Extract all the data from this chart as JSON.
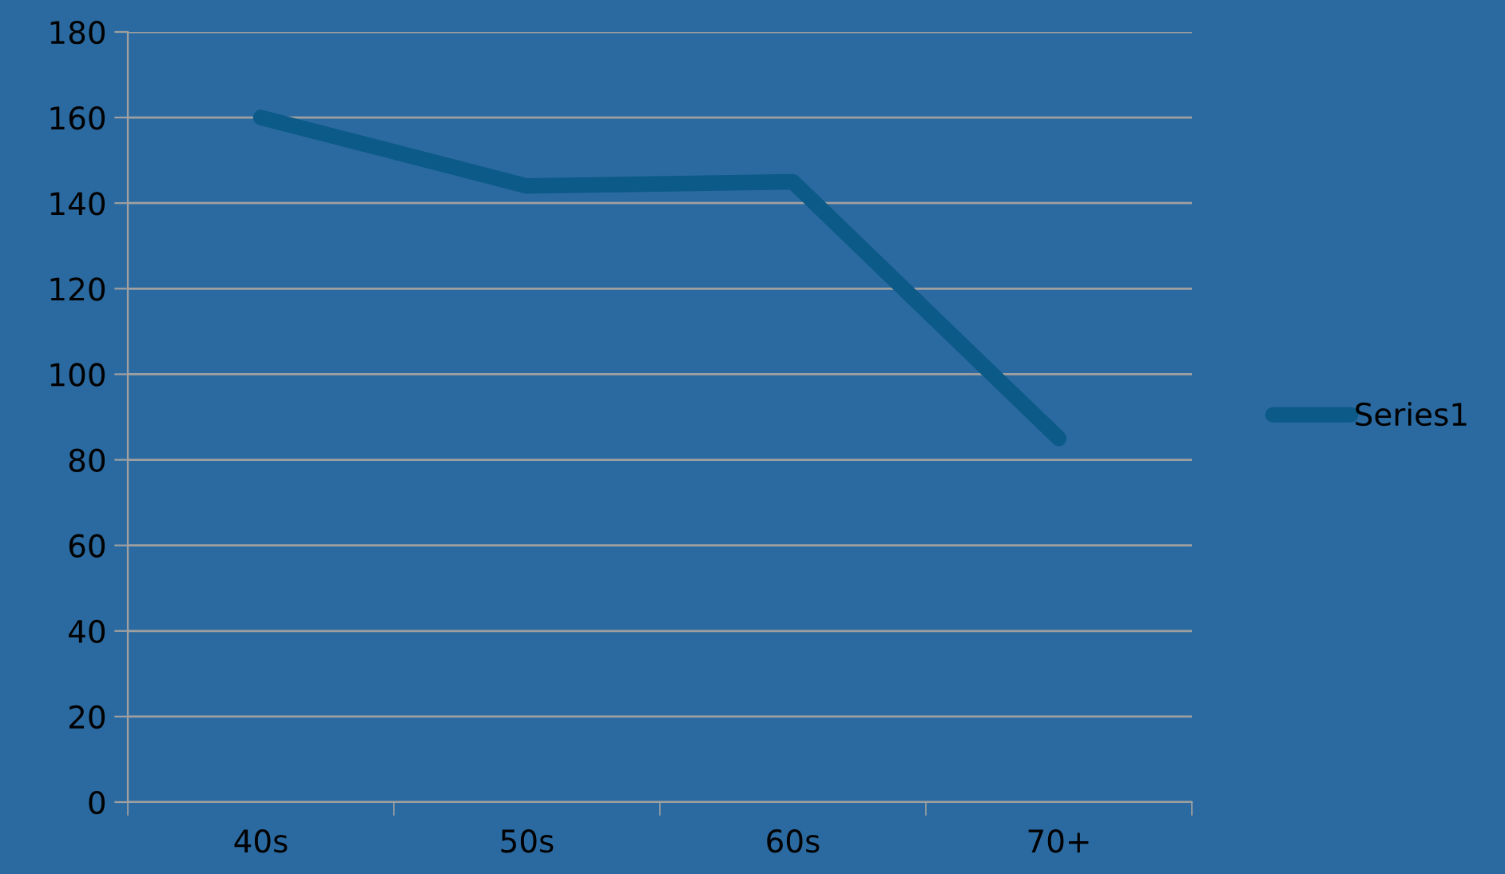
{
  "chart_data": {
    "type": "line",
    "categories": [
      "40s",
      "50s",
      "60s",
      "70+"
    ],
    "series": [
      {
        "name": "Series1",
        "color": "#0b5a88",
        "values": [
          160,
          144,
          145,
          85
        ]
      }
    ],
    "ylim": [
      0,
      180
    ],
    "yticks": [
      0,
      20,
      40,
      60,
      80,
      100,
      120,
      140,
      160,
      180
    ],
    "grid": "y",
    "legend": "right",
    "marker": "none",
    "line_style": "solid"
  }
}
